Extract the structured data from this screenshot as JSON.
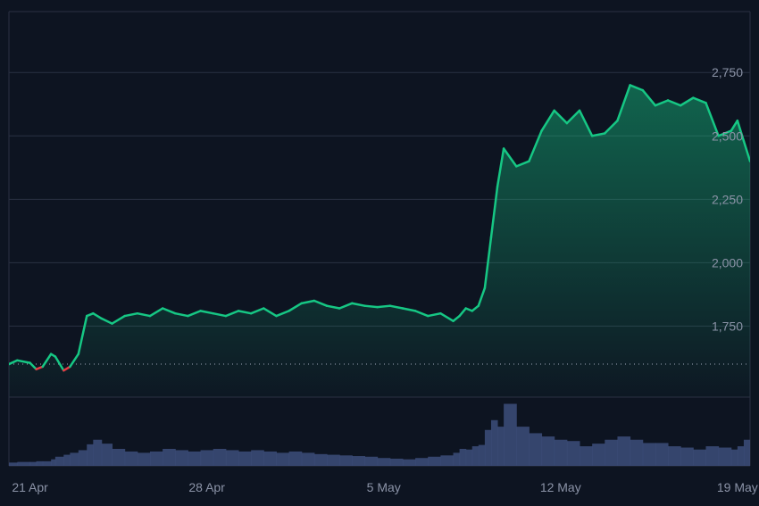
{
  "colors": {
    "background": "#0d1421",
    "grid": "#2a3142",
    "price_up": "#16c784",
    "price_down": "#ea3943",
    "volume": "#3d4d7a",
    "baseline": "#a1a7bb",
    "tick_text": "#8b93a7"
  },
  "chart_data": {
    "type": "area",
    "title": "",
    "xlabel": "",
    "ylabel": "",
    "y_ticks": [
      "1,750",
      "2,000",
      "2,250",
      "2,500",
      "2,750"
    ],
    "x_ticks": [
      "21 Apr",
      "28 Apr",
      "5 May",
      "12 May",
      "19 May"
    ],
    "y_tick_values": [
      1750,
      2000,
      2250,
      2500,
      2750
    ],
    "x_tick_dates": [
      "2025-04-21",
      "2025-04-28",
      "2025-05-05",
      "2025-05-12",
      "2025-05-19"
    ],
    "ylim": [
      1470,
      2990
    ],
    "xlim": [
      "2025-04-20T04:00",
      "2025-05-19T12:00"
    ],
    "baseline_price": 1600,
    "grid": true,
    "legend": "none",
    "series": [
      {
        "values_x": [
          "2025-04-20T04:00",
          "2025-04-20T12:00",
          "2025-04-21T00:00",
          "2025-04-21T06:00",
          "2025-04-21T12:00",
          "2025-04-21T20:00",
          "2025-04-22T00:00",
          "2025-04-22T08:00",
          "2025-04-22T14:00",
          "2025-04-22T22:00",
          "2025-04-23T06:00",
          "2025-04-23T12:00",
          "2025-04-23T20:00",
          "2025-04-24T06:00",
          "2025-04-24T18:00",
          "2025-04-25T06:00",
          "2025-04-25T18:00",
          "2025-04-26T06:00",
          "2025-04-26T18:00",
          "2025-04-27T06:00",
          "2025-04-27T18:00",
          "2025-04-28T06:00",
          "2025-04-28T18:00",
          "2025-04-29T06:00",
          "2025-04-29T18:00",
          "2025-04-30T06:00",
          "2025-04-30T18:00",
          "2025-05-01T06:00",
          "2025-05-01T18:00",
          "2025-05-02T06:00",
          "2025-05-02T18:00",
          "2025-05-03T06:00",
          "2025-05-03T18:00",
          "2025-05-04T06:00",
          "2025-05-04T18:00",
          "2025-05-05T06:00",
          "2025-05-05T18:00",
          "2025-05-06T06:00",
          "2025-05-06T18:00",
          "2025-05-07T06:00",
          "2025-05-07T18:00",
          "2025-05-08T00:00",
          "2025-05-08T06:00",
          "2025-05-08T12:00",
          "2025-05-08T18:00",
          "2025-05-09T00:00",
          "2025-05-09T06:00",
          "2025-05-09T12:00",
          "2025-05-09T18:00",
          "2025-05-10T06:00",
          "2025-05-10T18:00",
          "2025-05-11T06:00",
          "2025-05-11T18:00",
          "2025-05-12T06:00",
          "2025-05-12T18:00",
          "2025-05-13T06:00",
          "2025-05-13T18:00",
          "2025-05-14T06:00",
          "2025-05-14T18:00",
          "2025-05-15T06:00",
          "2025-05-15T18:00",
          "2025-05-16T06:00",
          "2025-05-16T18:00",
          "2025-05-17T06:00",
          "2025-05-17T18:00",
          "2025-05-18T06:00",
          "2025-05-18T18:00",
          "2025-05-19T00:00",
          "2025-05-19T06:00",
          "2025-05-19T12:00"
        ],
        "values": [
          1600,
          1615,
          1605,
          1580,
          1590,
          1640,
          1630,
          1575,
          1590,
          1640,
          1790,
          1800,
          1780,
          1760,
          1790,
          1800,
          1790,
          1820,
          1800,
          1790,
          1810,
          1800,
          1790,
          1810,
          1800,
          1820,
          1790,
          1810,
          1840,
          1850,
          1830,
          1820,
          1840,
          1830,
          1825,
          1830,
          1820,
          1810,
          1790,
          1800,
          1770,
          1790,
          1820,
          1810,
          1830,
          1900,
          2100,
          2300,
          2450,
          2380,
          2400,
          2520,
          2600,
          2550,
          2600,
          2500,
          2510,
          2560,
          2700,
          2680,
          2620,
          2640,
          2620,
          2650,
          2630,
          2500,
          2520,
          2560,
          2480,
          2400
        ],
        "volume": [
          0.05,
          0.06,
          0.06,
          0.07,
          0.07,
          0.1,
          0.14,
          0.17,
          0.2,
          0.24,
          0.33,
          0.4,
          0.34,
          0.26,
          0.22,
          0.2,
          0.22,
          0.26,
          0.24,
          0.22,
          0.24,
          0.26,
          0.24,
          0.22,
          0.24,
          0.22,
          0.2,
          0.22,
          0.2,
          0.18,
          0.17,
          0.16,
          0.15,
          0.14,
          0.12,
          0.11,
          0.1,
          0.12,
          0.14,
          0.16,
          0.2,
          0.26,
          0.25,
          0.3,
          0.32,
          0.55,
          0.7,
          0.6,
          0.95,
          0.6,
          0.5,
          0.45,
          0.4,
          0.38,
          0.3,
          0.34,
          0.4,
          0.45,
          0.4,
          0.35,
          0.35,
          0.3,
          0.28,
          0.25,
          0.3,
          0.28,
          0.25,
          0.3,
          0.4,
          0.5
        ]
      }
    ]
  }
}
